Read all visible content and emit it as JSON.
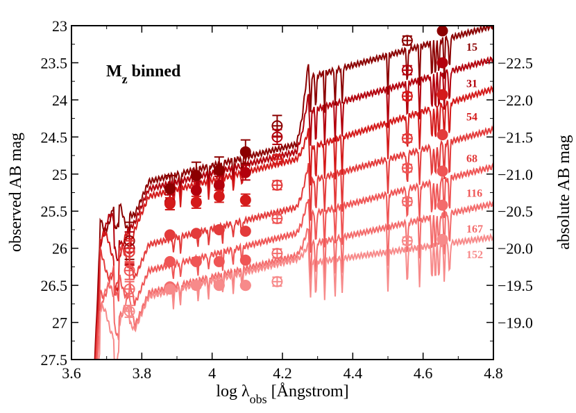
{
  "chart_data": {
    "type": "line",
    "title": "",
    "annotation": {
      "main": "M",
      "sub": "z",
      "rest": " binned"
    },
    "xlabel": {
      "prefix": "log λ",
      "sub": "obs",
      "suffix": " [Ångstrom]"
    },
    "ylabel": "observed AB mag",
    "y2label": "absolute AB mag",
    "xlim": [
      3.6,
      4.8
    ],
    "ylim": [
      23,
      27.5
    ],
    "y_inverted": true,
    "x_ticks": [
      3.6,
      3.8,
      4.0,
      4.2,
      4.4,
      4.6,
      4.8
    ],
    "x_tick_labels": [
      "3.6",
      "3.8",
      "4",
      "4.2",
      "4.4",
      "4.6",
      "4.8"
    ],
    "y_ticks": [
      23,
      23.5,
      24,
      24.5,
      25,
      25.5,
      26,
      26.5,
      27,
      27.5
    ],
    "y_tick_labels": [
      "23",
      "23.5",
      "24",
      "24.5",
      "25",
      "25.5",
      "26",
      "26.5",
      "27",
      "27.5"
    ],
    "y2_ticks": [
      {
        "label": "−22.5",
        "at": 23.5
      },
      {
        "label": "−22.0",
        "at": 24.0
      },
      {
        "label": "−21.5",
        "at": 24.5
      },
      {
        "label": "−21.0",
        "at": 25.0
      },
      {
        "label": "−20.5",
        "at": 25.5
      },
      {
        "label": "−20.0",
        "at": 26.0
      },
      {
        "label": "−19.5",
        "at": 26.5
      },
      {
        "label": "−19.0",
        "at": 27.0
      }
    ],
    "filled_x": [
      3.88,
      3.955,
      4.02,
      4.095,
      4.655
    ],
    "open_x": [
      3.765,
      4.185,
      4.555
    ],
    "series": [
      {
        "name": "15",
        "color": "#8b0000",
        "label_y": 23.28,
        "model": {
          "uv": 25.55,
          "pre": 25.0,
          "post": 24.0,
          "end": 23.0
        },
        "filled": [
          25.2,
          25.02,
          24.95,
          24.7,
          23.07
        ],
        "filled_err": [
          0.18,
          0.18,
          0.18,
          0.16,
          0.04
        ],
        "open": [
          25.9,
          24.35,
          23.2
        ],
        "open_err": [
          0.25,
          0.14,
          0.06
        ]
      },
      {
        "name": "31",
        "color": "#b3000c",
        "label_y": 23.77,
        "model": {
          "uv": 25.75,
          "pre": 25.1,
          "post": 24.45,
          "end": 23.45
        },
        "filled": [
          25.38,
          25.22,
          25.15,
          24.98,
          23.5
        ],
        "filled_err": [
          0.1,
          0.12,
          0.12,
          0.1,
          0.04
        ],
        "open": [
          26.0,
          24.5,
          23.6
        ],
        "open_err": [
          0.22,
          0.1,
          0.06
        ]
      },
      {
        "name": "54",
        "color": "#d41a1a",
        "label_y": 24.22,
        "model": {
          "uv": 26.0,
          "pre": 25.2,
          "post": 24.95,
          "end": 23.85
        },
        "filled": [
          25.4,
          25.38,
          25.3,
          25.35,
          23.93
        ],
        "filled_err": [
          0.08,
          0.08,
          0.08,
          0.08,
          0.03
        ],
        "open": [
          26.05,
          24.8,
          23.95
        ],
        "open_err": [
          0.18,
          0.06,
          0.05
        ]
      },
      {
        "name": "68",
        "color": "#e33b3b",
        "label_y": 24.78,
        "model": {
          "uv": 26.2,
          "pre": 25.85,
          "post": 25.4,
          "end": 24.4
        },
        "filled": [
          25.82,
          25.8,
          25.75,
          25.77,
          24.47
        ],
        "filled_err": [
          0.05,
          0.05,
          0.05,
          0.05,
          0.03
        ],
        "open": [
          26.05,
          25.15,
          24.52
        ],
        "open_err": [
          0.15,
          0.06,
          0.05
        ]
      },
      {
        "name": "116",
        "color": "#ef5555",
        "label_y": 25.25,
        "model": {
          "uv": 26.45,
          "pre": 26.2,
          "post": 25.85,
          "end": 24.9
        },
        "filled": [
          26.18,
          26.18,
          26.18,
          26.16,
          24.96
        ],
        "filled_err": [
          0.04,
          0.04,
          0.04,
          0.04,
          0.03
        ],
        "open": [
          26.3,
          25.6,
          24.92
        ],
        "open_err": [
          0.12,
          0.06,
          0.05
        ]
      },
      {
        "name": "167",
        "color": "#f36b6b",
        "label_y": 25.73,
        "model": {
          "uv": 26.7,
          "pre": 26.5,
          "post": 26.25,
          "end": 25.4
        },
        "filled": [
          26.52,
          26.5,
          26.5,
          26.5,
          25.42
        ],
        "filled_err": [
          0.03,
          0.03,
          0.03,
          0.03,
          0.03
        ],
        "open": [
          26.55,
          26.07,
          25.37
        ],
        "open_err": [
          0.1,
          0.06,
          0.05
        ]
      },
      {
        "name": "152",
        "color": "#f78a8a",
        "label_y": 26.08,
        "model": {
          "uv": 27.0,
          "pre": 26.55,
          "post": 26.5,
          "end": 25.85
        },
        "filled": [
          26.55,
          26.5,
          26.5,
          26.5,
          25.88
        ],
        "filled_err": [
          0.03,
          0.03,
          0.03,
          0.03,
          0.03
        ],
        "open": [
          26.85,
          26.45,
          25.9
        ],
        "open_err": [
          0.08,
          0.06,
          0.05
        ]
      }
    ]
  }
}
